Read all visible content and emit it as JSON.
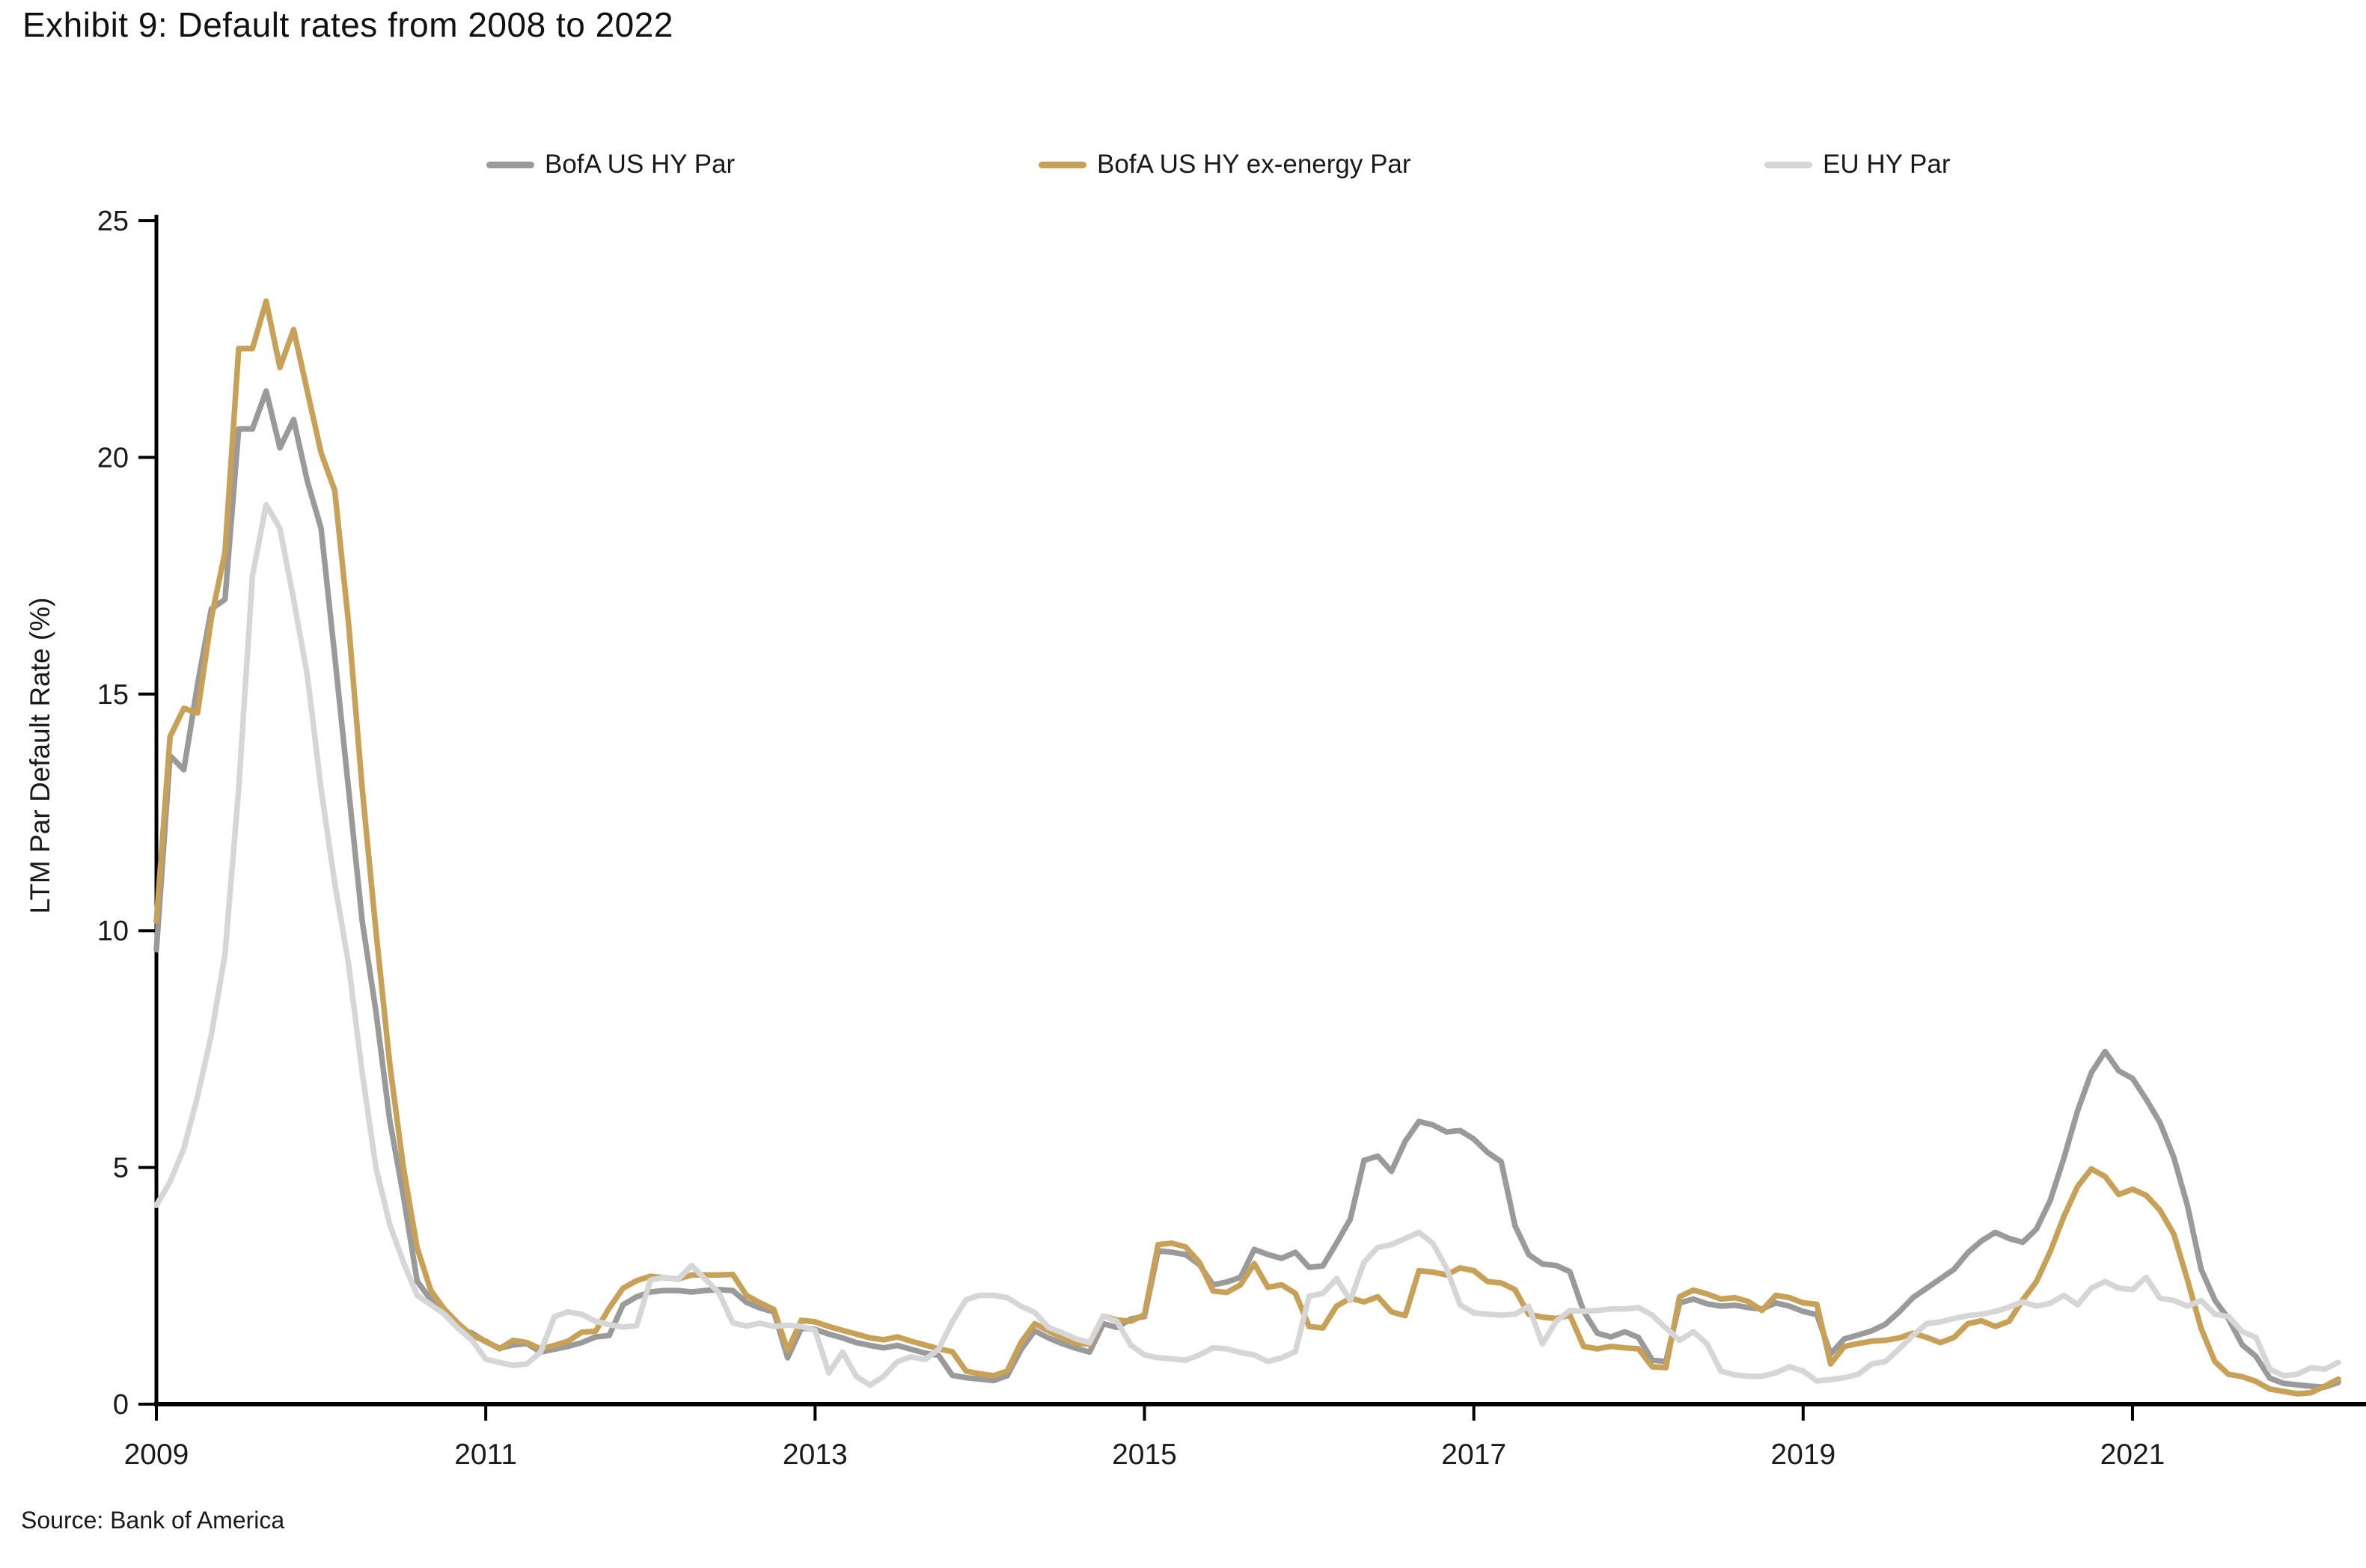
{
  "title": "Exhibit 9: Default rates from 2008 to 2022",
  "source": "Source: Bank of America",
  "colors": {
    "us_hy": "#9a9a9a",
    "us_hy_ex_energy": "#c8a159",
    "eu_hy": "#d6d6d6",
    "axis": "#000000",
    "text": "#1a1a1a"
  },
  "legend": {
    "items": [
      {
        "label": "BofA US HY Par",
        "color": "#9a9a9a"
      },
      {
        "label": "BofA US HY ex-energy Par",
        "color": "#c8a159"
      },
      {
        "label": "EU HY Par",
        "color": "#d6d6d6"
      }
    ]
  },
  "y_axis": {
    "label": "LTM Par Default Rate (%)",
    "ticks": [
      0,
      5,
      10,
      15,
      20,
      25
    ],
    "min": 0,
    "max": 25
  },
  "x_axis": {
    "tick_labels": [
      "2009",
      "2011",
      "2013",
      "2015",
      "2017",
      "2019",
      "2021"
    ],
    "tick_years": [
      2009,
      2011,
      2013,
      2015,
      2017,
      2019,
      2021
    ]
  },
  "chart_data": {
    "type": "line",
    "title": "Exhibit 9: Default rates from 2008 to 2022",
    "xlabel": "",
    "ylabel": "LTM Par Default Rate (%)",
    "ylim": [
      0,
      25
    ],
    "x_start_year": 2009.0,
    "x_step_months": 1,
    "grid": false,
    "legend_position": "top",
    "series": [
      {
        "name": "BofA US HY Par",
        "color": "#9a9a9a",
        "values": [
          9.6,
          13.7,
          13.4,
          15.2,
          16.8,
          17.0,
          20.6,
          20.6,
          21.4,
          20.2,
          20.8,
          19.5,
          18.5,
          15.8,
          13.0,
          10.2,
          8.3,
          6.0,
          4.4,
          2.6,
          2.2,
          1.9,
          1.6,
          1.5,
          1.32,
          1.18,
          1.25,
          1.28,
          1.1,
          1.16,
          1.22,
          1.3,
          1.42,
          1.45,
          2.1,
          2.27,
          2.37,
          2.4,
          2.4,
          2.37,
          2.4,
          2.42,
          2.4,
          2.15,
          2.03,
          1.95,
          0.98,
          1.61,
          1.58,
          1.48,
          1.4,
          1.3,
          1.24,
          1.19,
          1.24,
          1.16,
          1.08,
          1.03,
          0.61,
          0.56,
          0.53,
          0.5,
          0.6,
          1.15,
          1.55,
          1.4,
          1.28,
          1.18,
          1.1,
          1.7,
          1.62,
          1.8,
          1.85,
          3.24,
          3.21,
          3.16,
          2.95,
          2.52,
          2.58,
          2.68,
          3.27,
          3.16,
          3.08,
          3.21,
          2.89,
          2.92,
          3.4,
          3.91,
          5.15,
          5.24,
          4.92,
          5.55,
          5.97,
          5.9,
          5.75,
          5.78,
          5.6,
          5.32,
          5.12,
          3.77,
          3.16,
          2.96,
          2.93,
          2.8,
          1.96,
          1.5,
          1.42,
          1.53,
          1.41,
          0.93,
          0.9,
          2.14,
          2.22,
          2.12,
          2.07,
          2.09,
          2.04,
          2.01,
          2.14,
          2.07,
          1.96,
          1.89,
          1.06,
          1.38,
          1.46,
          1.55,
          1.69,
          1.95,
          2.25,
          2.45,
          2.65,
          2.85,
          3.2,
          3.45,
          3.63,
          3.5,
          3.42,
          3.7,
          4.3,
          5.2,
          6.2,
          7.0,
          7.45,
          7.04,
          6.88,
          6.44,
          5.95,
          5.22,
          4.2,
          2.85,
          2.2,
          1.8,
          1.25,
          1.01,
          0.55,
          0.44,
          0.41,
          0.38,
          0.36,
          0.46
        ]
      },
      {
        "name": "BofA US HY ex-energy Par",
        "color": "#c8a159",
        "values": [
          10.2,
          14.1,
          14.7,
          14.6,
          16.6,
          18.0,
          22.3,
          22.3,
          23.3,
          21.9,
          22.7,
          21.4,
          20.1,
          19.3,
          16.5,
          13.0,
          10.0,
          7.2,
          5.0,
          3.3,
          2.4,
          2.0,
          1.7,
          1.45,
          1.33,
          1.17,
          1.35,
          1.3,
          1.17,
          1.24,
          1.33,
          1.52,
          1.54,
          2.03,
          2.45,
          2.61,
          2.7,
          2.67,
          2.64,
          2.73,
          2.73,
          2.73,
          2.74,
          2.3,
          2.14,
          2.0,
          1.14,
          1.77,
          1.74,
          1.64,
          1.56,
          1.48,
          1.4,
          1.36,
          1.42,
          1.33,
          1.25,
          1.17,
          1.11,
          0.7,
          0.64,
          0.6,
          0.7,
          1.3,
          1.7,
          1.55,
          1.4,
          1.28,
          1.27,
          1.86,
          1.78,
          1.75,
          1.89,
          3.37,
          3.4,
          3.32,
          3.0,
          2.39,
          2.36,
          2.52,
          2.97,
          2.47,
          2.52,
          2.34,
          1.64,
          1.61,
          2.07,
          2.24,
          2.16,
          2.27,
          1.95,
          1.87,
          2.82,
          2.79,
          2.73,
          2.88,
          2.82,
          2.59,
          2.56,
          2.42,
          1.9,
          1.84,
          1.81,
          1.88,
          1.22,
          1.17,
          1.22,
          1.19,
          1.17,
          0.79,
          0.77,
          2.27,
          2.41,
          2.33,
          2.22,
          2.25,
          2.17,
          1.98,
          2.3,
          2.25,
          2.14,
          2.11,
          0.85,
          1.22,
          1.28,
          1.33,
          1.35,
          1.4,
          1.5,
          1.41,
          1.3,
          1.41,
          1.7,
          1.76,
          1.64,
          1.75,
          2.2,
          2.59,
          3.22,
          3.97,
          4.6,
          4.97,
          4.81,
          4.43,
          4.54,
          4.41,
          4.1,
          3.6,
          2.63,
          1.6,
          0.9,
          0.63,
          0.58,
          0.48,
          0.32,
          0.27,
          0.22,
          0.24,
          0.38,
          0.53
        ]
      },
      {
        "name": "EU HY Par",
        "color": "#d6d6d6",
        "values": [
          4.2,
          4.7,
          5.4,
          6.5,
          7.8,
          9.5,
          13.0,
          17.5,
          19.0,
          18.5,
          17.0,
          15.4,
          13.0,
          11.0,
          9.3,
          7.0,
          5.0,
          3.8,
          3.0,
          2.3,
          2.1,
          1.9,
          1.6,
          1.35,
          0.95,
          0.88,
          0.82,
          0.85,
          1.1,
          1.85,
          1.95,
          1.9,
          1.75,
          1.68,
          1.63,
          1.66,
          2.62,
          2.68,
          2.63,
          2.93,
          2.64,
          2.35,
          1.72,
          1.65,
          1.71,
          1.64,
          1.67,
          1.64,
          1.56,
          0.66,
          1.1,
          0.59,
          0.4,
          0.59,
          0.9,
          1.0,
          0.94,
          1.16,
          1.74,
          2.21,
          2.3,
          2.3,
          2.25,
          2.07,
          1.94,
          1.62,
          1.51,
          1.38,
          1.3,
          1.86,
          1.75,
          1.25,
          1.04,
          0.98,
          0.96,
          0.93,
          1.04,
          1.19,
          1.17,
          1.09,
          1.04,
          0.9,
          0.98,
          1.11,
          2.28,
          2.34,
          2.65,
          2.19,
          3.0,
          3.31,
          3.37,
          3.5,
          3.63,
          3.4,
          2.88,
          2.1,
          1.93,
          1.9,
          1.88,
          1.9,
          2.07,
          1.27,
          1.75,
          1.98,
          1.96,
          1.98,
          2.01,
          2.01,
          2.04,
          1.88,
          1.61,
          1.35,
          1.53,
          1.27,
          0.7,
          0.62,
          0.59,
          0.59,
          0.66,
          0.79,
          0.7,
          0.49,
          0.52,
          0.56,
          0.63,
          0.85,
          0.9,
          1.17,
          1.45,
          1.7,
          1.74,
          1.81,
          1.87,
          1.9,
          1.96,
          2.05,
          2.16,
          2.07,
          2.13,
          2.3,
          2.1,
          2.45,
          2.59,
          2.45,
          2.42,
          2.68,
          2.24,
          2.19,
          2.07,
          2.19,
          1.9,
          1.85,
          1.53,
          1.41,
          0.74,
          0.6,
          0.63,
          0.77,
          0.74,
          0.88
        ]
      }
    ]
  }
}
